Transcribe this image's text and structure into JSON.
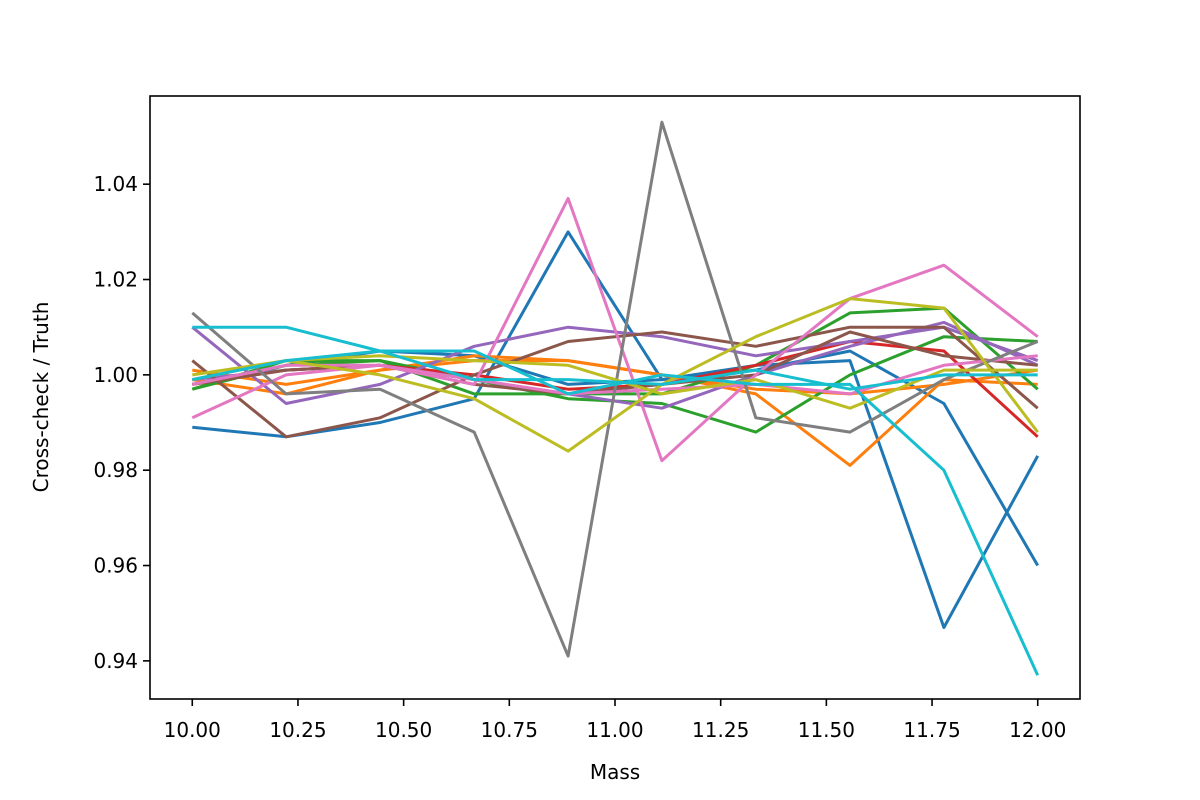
{
  "chart_data": {
    "type": "line",
    "title": "",
    "xlabel": "Mass",
    "ylabel": "Cross-check / Truth",
    "xlim": [
      9.9,
      12.1
    ],
    "ylim": [
      0.932,
      1.0585
    ],
    "grid": false,
    "legend": "none",
    "x": [
      10.0,
      10.222,
      10.444,
      10.667,
      10.889,
      11.111,
      11.333,
      11.556,
      11.778,
      12.0
    ],
    "xticks": [
      10.0,
      10.25,
      10.5,
      10.75,
      11.0,
      11.25,
      11.5,
      11.75,
      12.0
    ],
    "xtick_labels": [
      "10.00",
      "10.25",
      "10.50",
      "10.75",
      "11.00",
      "11.25",
      "11.50",
      "11.75",
      "12.00"
    ],
    "yticks": [
      0.94,
      0.96,
      0.98,
      1.0,
      1.02,
      1.04
    ],
    "ytick_labels": [
      "0.94",
      "0.96",
      "0.98",
      "1.00",
      "1.02",
      "1.04"
    ],
    "series": [
      {
        "color": "#1f77b4",
        "values": [
          0.989,
          0.987,
          0.99,
          0.995,
          1.03,
          0.999,
          1.001,
          1.005,
          0.994,
          0.96
        ]
      },
      {
        "color": "#1f77b4",
        "values": [
          0.998,
          1.002,
          1.005,
          1.004,
          0.998,
          0.999,
          1.002,
          1.003,
          0.947,
          0.983
        ]
      },
      {
        "color": "#ff7f0e",
        "values": [
          1.001,
          0.998,
          1.001,
          1.004,
          1.003,
          1.0,
          0.996,
          0.981,
          0.999,
          0.998
        ]
      },
      {
        "color": "#ff7f0e",
        "values": [
          0.999,
          0.996,
          1.001,
          1.003,
          1.003,
          1.0,
          0.997,
          0.996,
          0.998,
          1.001
        ]
      },
      {
        "color": "#2ca02c",
        "values": [
          0.997,
          1.002,
          1.003,
          0.999,
          0.995,
          0.994,
          0.988,
          1.0,
          1.008,
          1.007
        ]
      },
      {
        "color": "#2ca02c",
        "values": [
          0.997,
          1.003,
          1.003,
          0.996,
          0.996,
          0.996,
          1.002,
          1.013,
          1.014,
          0.997
        ]
      },
      {
        "color": "#d62728",
        "values": [
          0.998,
          1.001,
          1.002,
          1.0,
          0.997,
          0.998,
          1.002,
          1.007,
          1.005,
          0.987
        ]
      },
      {
        "color": "#9467bd",
        "values": [
          1.01,
          0.994,
          0.998,
          1.006,
          1.01,
          1.008,
          1.004,
          1.007,
          1.01,
          1.003
        ]
      },
      {
        "color": "#9467bd",
        "values": [
          0.999,
          1.001,
          1.002,
          0.999,
          0.996,
          0.993,
          1.0,
          1.006,
          1.011,
          1.002
        ]
      },
      {
        "color": "#8c564b",
        "values": [
          1.003,
          0.987,
          0.991,
          1.0,
          1.007,
          1.009,
          1.006,
          1.01,
          1.01,
          0.993
        ]
      },
      {
        "color": "#8c564b",
        "values": [
          0.998,
          1.001,
          1.002,
          0.998,
          0.996,
          0.998,
          1.0,
          1.009,
          1.004,
          1.002
        ]
      },
      {
        "color": "#e377c2",
        "values": [
          0.991,
          1.0,
          1.002,
          0.998,
          1.037,
          0.982,
          1.0,
          1.016,
          1.023,
          1.008
        ]
      },
      {
        "color": "#e377c2",
        "values": [
          0.998,
          1.002,
          1.002,
          0.999,
          0.996,
          0.997,
          0.998,
          0.996,
          1.002,
          1.004
        ]
      },
      {
        "color": "#7f7f7f",
        "values": [
          1.013,
          0.996,
          0.997,
          0.988,
          0.941,
          1.053,
          0.991,
          0.988,
          0.999,
          1.007
        ]
      },
      {
        "color": "#bcbd22",
        "values": [
          1.0,
          1.003,
          1.0,
          0.995,
          0.984,
          0.998,
          1.008,
          1.016,
          1.014,
          0.988
        ]
      },
      {
        "color": "#bcbd22",
        "values": [
          0.999,
          1.003,
          1.004,
          1.003,
          1.002,
          0.996,
          0.999,
          0.993,
          1.001,
          1.001
        ]
      },
      {
        "color": "#17becf",
        "values": [
          1.01,
          1.01,
          1.005,
          1.005,
          0.996,
          1.0,
          0.998,
          0.998,
          0.98,
          0.937
        ]
      },
      {
        "color": "#17becf",
        "values": [
          0.999,
          1.003,
          1.005,
          0.999,
          0.999,
          0.998,
          1.001,
          0.997,
          1.0,
          1.0
        ]
      }
    ]
  }
}
